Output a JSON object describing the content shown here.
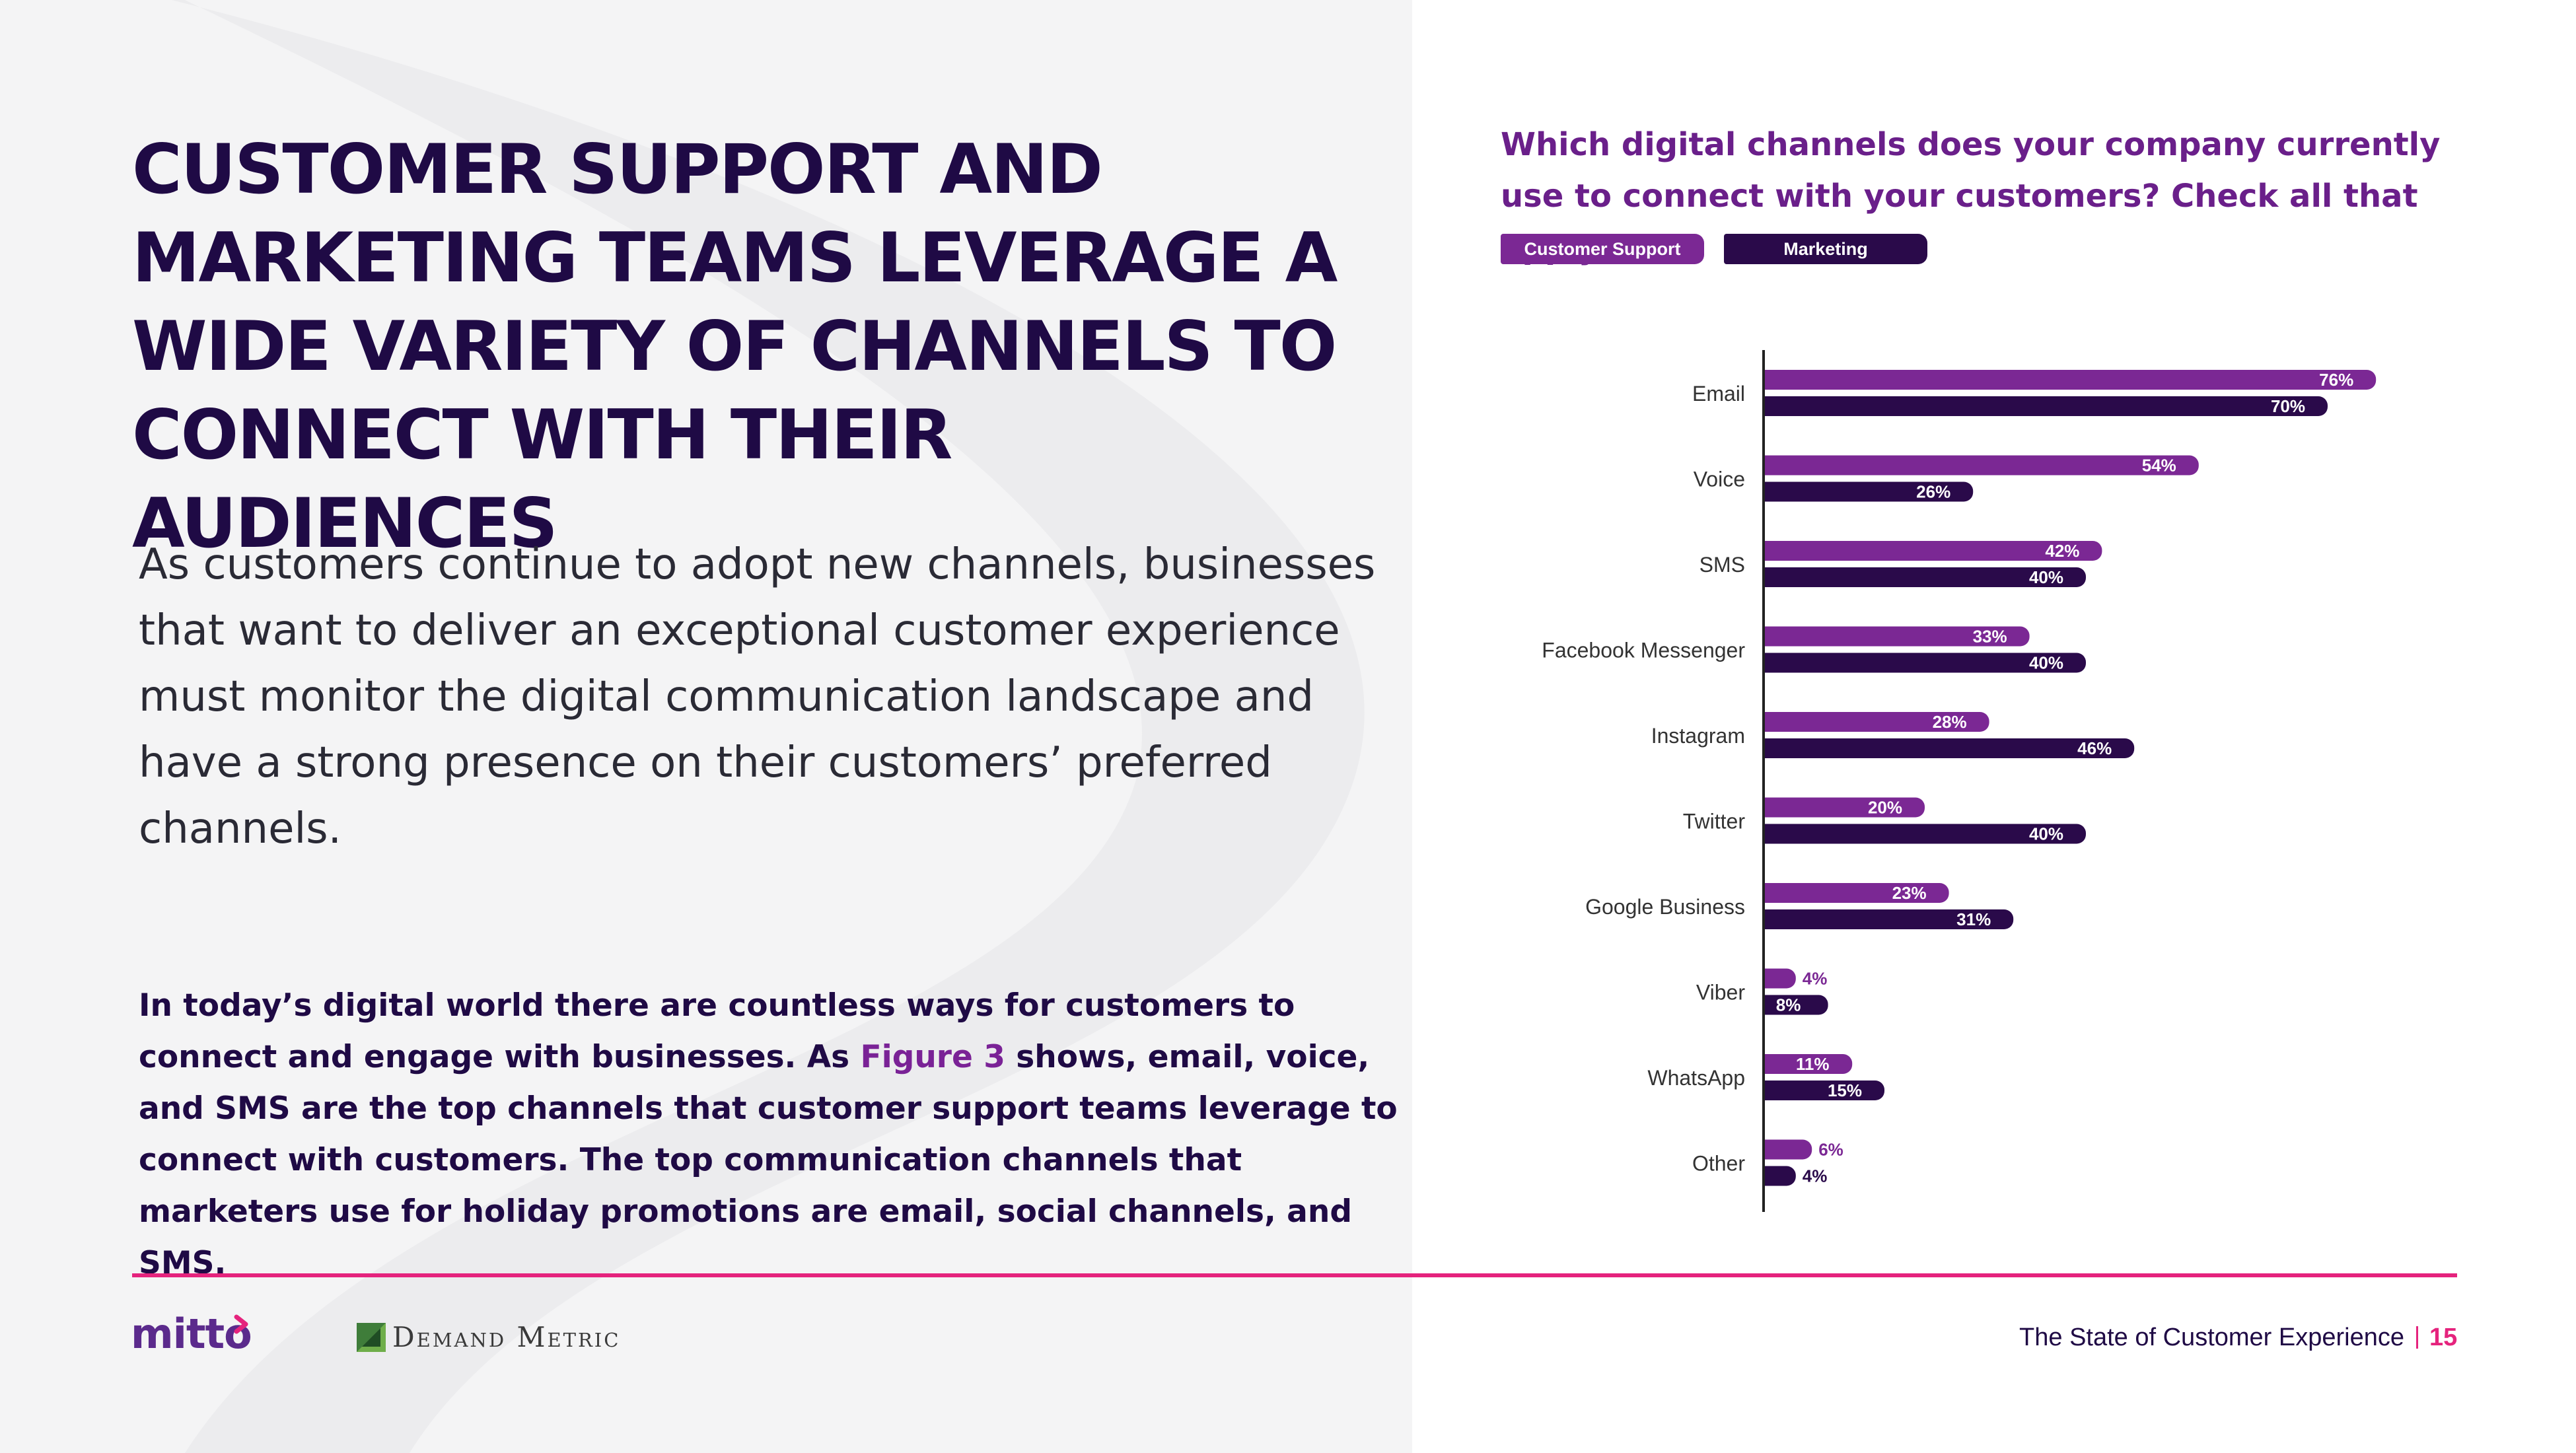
{
  "headline": "CUSTOMER SUPPORT AND MARKETING TEAMS LEVERAGE A WIDE VARIETY OF CHANNELS TO CONNECT WITH THEIR AUDIENCES",
  "lede": "As customers continue to adopt new channels, businesses that want to deliver an exceptional customer experience must monitor the digital communication landscape and have a strong presence on their customers’ preferred channels.",
  "body": {
    "before_link": "In today’s digital world there are countless ways for customers to connect and engage with businesses. As ",
    "link": "Figure 3",
    "after_link": " shows, email, voice, and SMS are the top channels that customer support teams leverage to connect with customers. The top communication channels that marketers use for holiday promotions are email, social channels, and SMS."
  },
  "footer": {
    "brand_logo": "mitto",
    "partner_logo": "Demand Metric",
    "report_title": "The State of Customer Experience",
    "page_number": "15"
  },
  "colors": {
    "customer_support": "#7b2894",
    "marketing": "#2a0a4a",
    "accent": "#e5237d",
    "headline": "#1f0a45"
  },
  "chart_data": {
    "type": "bar",
    "orientation": "horizontal",
    "title": "Which digital channels does your company currently use to connect with your customers? Check all that apply.",
    "categories": [
      "Email",
      "Voice",
      "SMS",
      "Facebook Messenger",
      "Instagram",
      "Twitter",
      "Google Business",
      "Viber",
      "WhatsApp",
      "Other"
    ],
    "series": [
      {
        "name": "Customer Support",
        "values": [
          76,
          54,
          42,
          33,
          28,
          20,
          23,
          4,
          11,
          6
        ]
      },
      {
        "name": "Marketing",
        "values": [
          70,
          26,
          40,
          40,
          46,
          40,
          31,
          8,
          15,
          4
        ]
      }
    ],
    "value_suffix": "%",
    "xlim": [
      0,
      100
    ],
    "legend": "top-left",
    "grid": false
  }
}
